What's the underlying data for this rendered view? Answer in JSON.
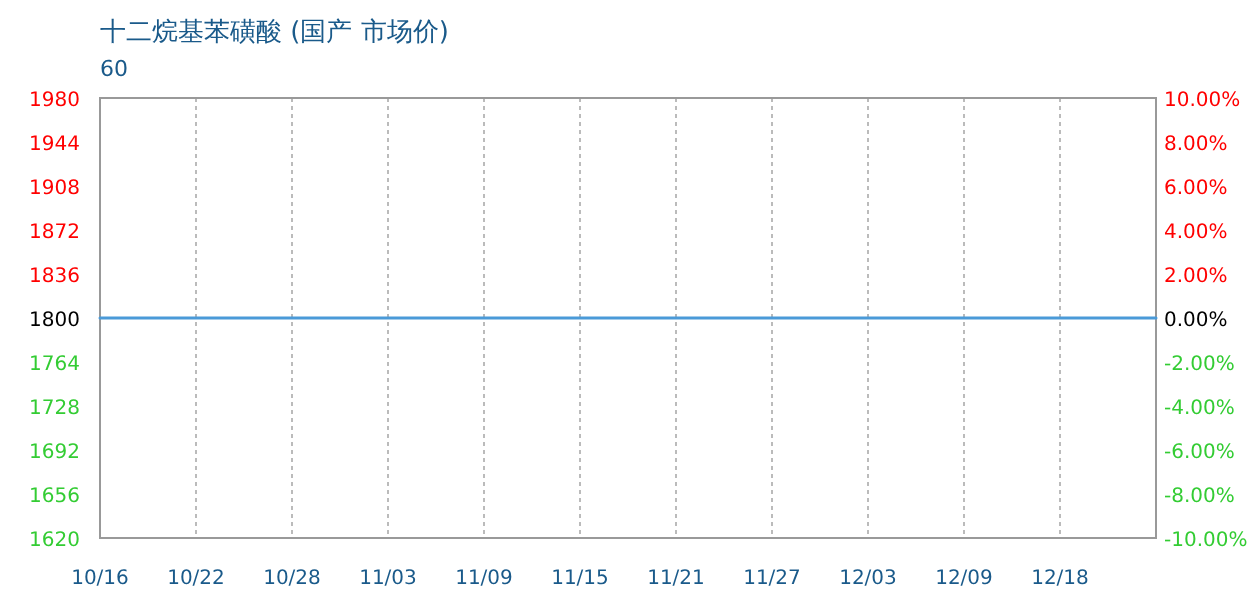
{
  "chart_data": {
    "type": "line",
    "title": "十二烷基苯磺酸 (国产 市场价)",
    "annotations": [
      "60"
    ],
    "categories": [
      "10/16",
      "10/22",
      "10/28",
      "11/03",
      "11/09",
      "11/15",
      "11/21",
      "11/27",
      "12/03",
      "12/09",
      "12/18",
      null
    ],
    "series": [
      {
        "color": "#4a9ad8",
        "values": [
          1800,
          1800,
          1800,
          1800,
          1800,
          1800,
          1800,
          1800,
          1800,
          1800,
          1800,
          1800
        ]
      }
    ],
    "ylim": [
      1620,
      1980
    ],
    "yticks": [
      1620,
      1656,
      1692,
      1728,
      1764,
      1800,
      1836,
      1872,
      1908,
      1944,
      1980
    ],
    "y2lim": [
      -10,
      10
    ],
    "y2ticks": [
      {
        "value": -10,
        "label": "-10.00%"
      },
      {
        "value": -8,
        "label": "-8.00%"
      },
      {
        "value": -6,
        "label": "-6.00%"
      },
      {
        "value": -4,
        "label": "-4.00%"
      },
      {
        "value": -2,
        "label": "-2.00%"
      },
      {
        "value": 0,
        "label": "0.00%"
      },
      {
        "value": 2,
        "label": "2.00%"
      },
      {
        "value": 4,
        "label": "4.00%"
      },
      {
        "value": 6,
        "label": "6.00%"
      },
      {
        "value": 8,
        "label": "8.00%"
      },
      {
        "value": 10,
        "label": "10.00%"
      }
    ],
    "grid": "x",
    "marker": "none",
    "line_style": "solid"
  }
}
